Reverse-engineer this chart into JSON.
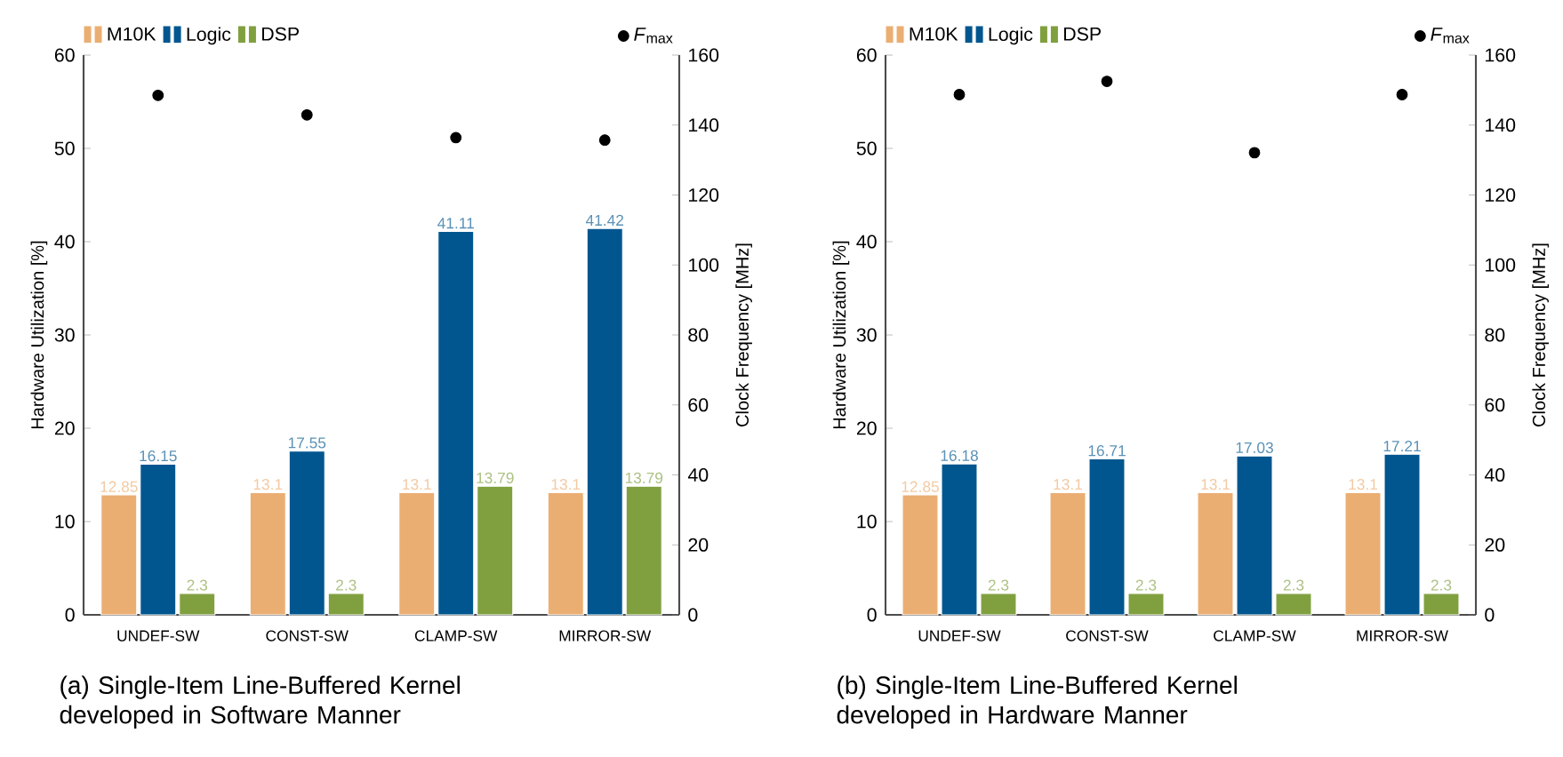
{
  "chart_data": [
    {
      "type": "bar",
      "categories": [
        "UNDEF-SW",
        "CONST-SW",
        "CLAMP-SW",
        "MIRROR-SW"
      ],
      "ylabel": "Hardware Utilization [%]",
      "y2label": "Clock Frequency [MHz]",
      "ylim": [
        0,
        60
      ],
      "yticks": [
        0,
        10,
        20,
        30,
        40,
        50,
        60
      ],
      "y2lim": [
        0,
        160
      ],
      "y2ticks": [
        0,
        20,
        40,
        60,
        80,
        100,
        120,
        140,
        160
      ],
      "legend": "top",
      "annotations": [
        "(a) Single-Item Line-Buffered Kernel developed in Software Manner"
      ],
      "series": [
        {
          "name": "M10K",
          "color": "#ebae72",
          "values": [
            12.85,
            13.1,
            13.1,
            13.1
          ],
          "value_labels": [
            "12.85",
            "13.1",
            "13.1",
            "13.1"
          ]
        },
        {
          "name": "Logic",
          "color": "#01568f",
          "values": [
            16.15,
            17.55,
            41.11,
            41.42
          ],
          "value_labels": [
            "16.15",
            "17.55",
            "41.11",
            "41.42"
          ]
        },
        {
          "name": "DSP",
          "color": "#80a040",
          "values": [
            2.3,
            2.3,
            13.79,
            13.79
          ],
          "value_labels": [
            "2.3",
            "2.3",
            "13.79",
            "13.79"
          ]
        },
        {
          "name": "*F*$_{max}$",
          "type": "scatter",
          "axis": "y2",
          "marker": "circle",
          "color": "#000000",
          "values": [
            148.5,
            142.9,
            136.4,
            135.7
          ]
        }
      ]
    },
    {
      "type": "bar",
      "categories": [
        "UNDEF-SW",
        "CONST-SW",
        "CLAMP-SW",
        "MIRROR-SW"
      ],
      "ylabel": "Hardware Utilization [%]",
      "y2label": "Clock Frequency [MHz]",
      "ylim": [
        0,
        60
      ],
      "yticks": [
        0,
        10,
        20,
        30,
        40,
        50,
        60
      ],
      "y2lim": [
        0,
        160
      ],
      "y2ticks": [
        0,
        20,
        40,
        60,
        80,
        100,
        120,
        140,
        160
      ],
      "legend": "top",
      "annotations": [
        "(b) Single-Item Line-Buffered Kernel developed in Hardware Manner"
      ],
      "series": [
        {
          "name": "M10K",
          "color": "#ebae72",
          "values": [
            12.85,
            13.1,
            13.1,
            13.1
          ],
          "value_labels": [
            "12.85",
            "13.1",
            "13.1",
            "13.1"
          ]
        },
        {
          "name": "Logic",
          "color": "#01568f",
          "values": [
            16.18,
            16.71,
            17.03,
            17.21
          ],
          "value_labels": [
            "16.18",
            "16.71",
            "17.03",
            "17.21"
          ]
        },
        {
          "name": "DSP",
          "color": "#80a040",
          "values": [
            2.3,
            2.3,
            2.3,
            2.3
          ],
          "value_labels": [
            "2.3",
            "2.3",
            "2.3",
            "2.3"
          ]
        },
        {
          "name": "*F*$_{max}$",
          "type": "scatter",
          "axis": "y2",
          "marker": "circle",
          "color": "#000000",
          "values": [
            148.7,
            152.5,
            132.1,
            148.7
          ]
        }
      ]
    }
  ]
}
